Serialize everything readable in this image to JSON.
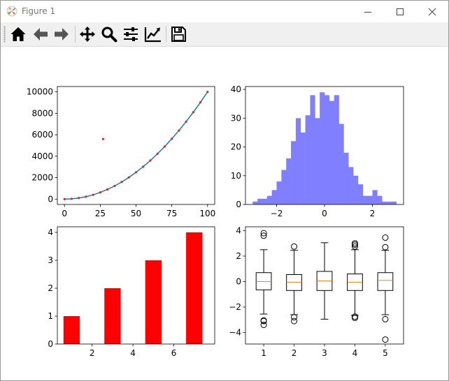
{
  "window": {
    "title": "Figure 1"
  },
  "toolbar": {
    "buttons": [
      {
        "name": "home-icon"
      },
      {
        "name": "back-icon"
      },
      {
        "name": "forward-icon"
      },
      {
        "name": "pan-icon"
      },
      {
        "name": "zoom-icon"
      },
      {
        "name": "configure-subplots-icon"
      },
      {
        "name": "edit-axis-icon"
      },
      {
        "name": "save-icon"
      }
    ]
  },
  "chart_data": [
    {
      "type": "line",
      "xticks": [
        0,
        25,
        50,
        75,
        100
      ],
      "yticks": [
        0,
        2000,
        4000,
        6000,
        8000,
        10000
      ],
      "xlim": [
        -5,
        105
      ],
      "ylim": [
        -500,
        10500
      ],
      "series": [
        {
          "kind": "line",
          "color": "#1f77b4",
          "x": [
            0,
            5,
            10,
            15,
            20,
            25,
            30,
            35,
            40,
            45,
            50,
            55,
            60,
            65,
            70,
            75,
            80,
            85,
            90,
            95,
            100
          ],
          "y": [
            0,
            25,
            100,
            225,
            400,
            625,
            900,
            1225,
            1600,
            2025,
            2500,
            3025,
            3600,
            4225,
            4900,
            5625,
            6400,
            7225,
            8100,
            9025,
            10000
          ]
        },
        {
          "kind": "points",
          "color": "#d62728",
          "x": [
            0,
            5,
            10,
            15,
            20,
            25,
            30,
            35,
            40,
            45,
            50,
            55,
            60,
            65,
            70,
            75,
            80,
            85,
            90,
            95,
            100
          ],
          "y": [
            0,
            25,
            100,
            225,
            400,
            625,
            900,
            1225,
            1600,
            2025,
            2500,
            3025,
            3600,
            4225,
            4900,
            5625,
            6400,
            7225,
            8100,
            9025,
            10000
          ]
        },
        {
          "kind": "points",
          "color": "#d62728",
          "x": [
            27
          ],
          "y": [
            5600
          ]
        }
      ]
    },
    {
      "type": "bar",
      "subtype": "histogram",
      "color": "#7f7fff",
      "bins_start": -3.0,
      "bin_width": 0.2,
      "counts": [
        1,
        2,
        2,
        3,
        5,
        8,
        12,
        16,
        22,
        30,
        25,
        31,
        38,
        30,
        39,
        38,
        36,
        38,
        28,
        18,
        13,
        10,
        7,
        3,
        3,
        5,
        3,
        1,
        1,
        1
      ],
      "xticks": [
        -2,
        0,
        2
      ],
      "yticks": [
        0,
        10,
        20,
        30,
        40
      ],
      "xlim": [
        -3.3,
        3.3
      ],
      "ylim": [
        0,
        41
      ]
    },
    {
      "type": "bar",
      "color": "#ff0000",
      "categories": [
        1,
        3,
        5,
        7
      ],
      "values": [
        1,
        2,
        3,
        4
      ],
      "xticks": [
        2,
        4,
        6
      ],
      "yticks": [
        0,
        1,
        2,
        3,
        4
      ],
      "xlim": [
        0.3,
        8.0
      ],
      "ylim": [
        0,
        4.2
      ]
    },
    {
      "type": "box",
      "xticks": [
        1,
        2,
        3,
        4,
        5
      ],
      "yticks": [
        -4,
        -2,
        0,
        2,
        4
      ],
      "xlim": [
        0.4,
        5.6
      ],
      "ylim": [
        -4.9,
        4.3
      ],
      "boxes": [
        {
          "q1": -0.65,
          "median": 0.0,
          "q3": 0.7,
          "lo": -2.55,
          "hi": 2.5,
          "fliers": [
            3.6,
            3.8,
            -3.05,
            -3.1,
            -3.4
          ]
        },
        {
          "q1": -0.7,
          "median": -0.05,
          "q3": 0.55,
          "lo": -2.6,
          "hi": 2.45,
          "fliers": [
            2.75,
            -2.8,
            -3.1
          ]
        },
        {
          "q1": -0.7,
          "median": 0.05,
          "q3": 0.8,
          "lo": -2.95,
          "hi": 3.05,
          "fliers": []
        },
        {
          "q1": -0.7,
          "median": -0.05,
          "q3": 0.6,
          "lo": -2.65,
          "hi": 2.5,
          "fliers": [
            2.75,
            2.9,
            3.0,
            -2.75,
            -2.85
          ]
        },
        {
          "q1": -0.7,
          "median": 0.1,
          "q3": 0.7,
          "lo": -2.6,
          "hi": 2.45,
          "fliers": [
            3.45,
            2.7,
            -2.95,
            -4.55
          ]
        }
      ],
      "median_color": "#ff7f0e"
    }
  ]
}
